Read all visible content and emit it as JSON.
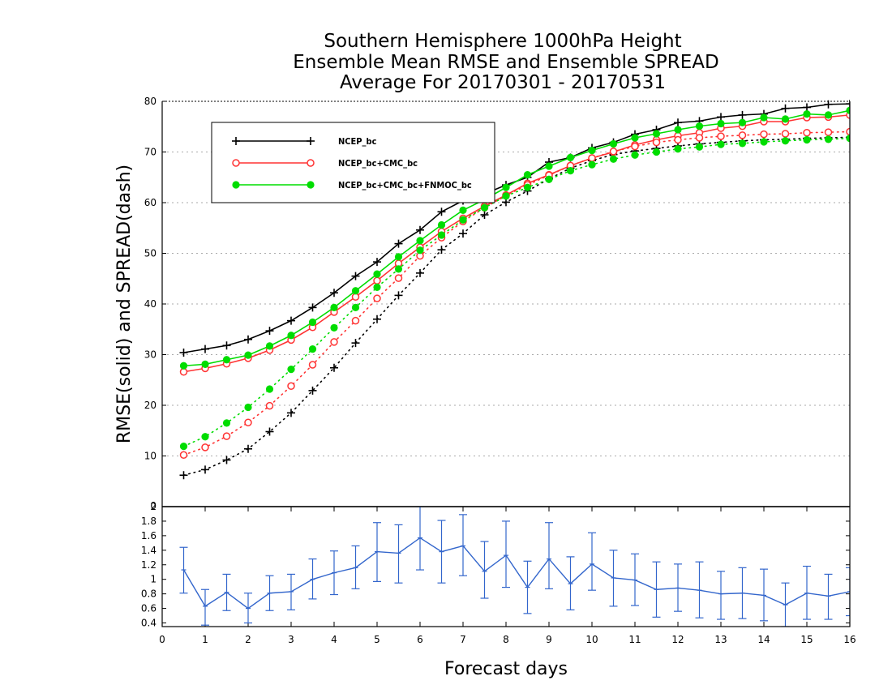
{
  "chart_data": [
    {
      "type": "line",
      "title_lines": [
        "Southern Hemisphere 1000hPa Height",
        "Ensemble Mean RMSE and Ensemble SPREAD",
        "Average For 20170301 - 20170531"
      ],
      "ylabel": "RMSE(solid)  and  SPREAD(dash)",
      "xlim": [
        0,
        16
      ],
      "ylim": [
        0,
        80
      ],
      "yticks": [
        "10",
        "20",
        "30",
        "40",
        "50",
        "60",
        "70",
        "80"
      ],
      "grid": "horizontal dotted",
      "legend_placement": "top-left",
      "x": [
        0.5,
        1,
        1.5,
        2,
        2.5,
        3,
        3.5,
        4,
        4.5,
        5,
        5.5,
        6,
        6.5,
        7,
        7.5,
        8,
        8.5,
        9,
        9.5,
        10,
        10.5,
        11,
        11.5,
        12,
        12.5,
        13,
        13.5,
        14,
        14.5,
        15,
        15.5,
        16
      ],
      "series": [
        {
          "name": "NCEP_bc",
          "color": "#000000",
          "marker": "plus",
          "rmse": [
            30.4,
            31.1,
            31.8,
            33.0,
            34.7,
            36.7,
            39.3,
            42.2,
            45.5,
            48.3,
            51.9,
            54.6,
            58.2,
            60.4,
            61.7,
            63.5,
            65.0,
            68.0,
            68.9,
            70.8,
            71.9,
            73.5,
            74.4,
            75.8,
            76.1,
            76.9,
            77.3,
            77.5,
            78.6,
            78.8,
            79.4,
            79.5
          ],
          "spread": [
            6.2,
            7.3,
            9.2,
            11.4,
            14.8,
            18.5,
            22.9,
            27.4,
            32.3,
            37.0,
            41.7,
            46.1,
            50.7,
            53.9,
            57.6,
            60.1,
            62.3,
            64.7,
            66.8,
            68.3,
            69.5,
            70.2,
            70.7,
            71.2,
            71.6,
            71.9,
            72.2,
            72.4,
            72.5,
            72.7,
            72.8,
            72.9
          ]
        },
        {
          "name": "NCEP_bc+CMC_bc",
          "color": "#ff3333",
          "marker": "open-circle",
          "rmse": [
            26.6,
            27.3,
            28.2,
            29.3,
            30.9,
            32.9,
            35.4,
            38.4,
            41.4,
            44.6,
            48.0,
            51.2,
            54.3,
            56.9,
            59.3,
            61.5,
            63.8,
            65.5,
            67.3,
            68.8,
            70.0,
            71.4,
            72.4,
            73.2,
            73.8,
            74.7,
            75.1,
            76.0,
            76.0,
            76.8,
            76.9,
            77.3
          ],
          "spread": [
            10.2,
            11.7,
            13.9,
            16.6,
            19.9,
            23.8,
            28.0,
            32.5,
            36.7,
            41.1,
            45.1,
            49.5,
            53.1,
            56.3,
            59.0,
            61.4,
            63.5,
            65.4,
            67.3,
            68.8,
            70.1,
            71.1,
            71.9,
            72.4,
            72.8,
            73.1,
            73.3,
            73.5,
            73.6,
            73.8,
            73.9,
            74.0
          ]
        },
        {
          "name": "NCEP_bc+CMC_bc+FNMOC_bc",
          "color": "#00dd00",
          "marker": "filled-circle",
          "rmse": [
            27.8,
            28.1,
            29.0,
            29.9,
            31.7,
            33.8,
            36.4,
            39.3,
            42.6,
            45.9,
            49.3,
            52.5,
            55.6,
            58.5,
            60.6,
            63.0,
            65.5,
            67.2,
            68.9,
            70.3,
            71.6,
            72.8,
            73.6,
            74.4,
            75.1,
            75.6,
            75.8,
            76.8,
            76.5,
            77.5,
            77.3,
            78.2
          ],
          "spread": [
            11.9,
            13.8,
            16.5,
            19.6,
            23.2,
            27.1,
            31.1,
            35.3,
            39.3,
            43.3,
            46.9,
            50.6,
            53.6,
            56.6,
            59.0,
            61.3,
            63.0,
            64.6,
            66.3,
            67.5,
            68.6,
            69.4,
            70.0,
            70.6,
            71.0,
            71.5,
            71.7,
            72.0,
            72.2,
            72.4,
            72.5,
            72.7
          ]
        }
      ]
    },
    {
      "type": "line",
      "xlabel": "Forecast days",
      "xlim": [
        0,
        16
      ],
      "ylim": [
        0.35,
        2.0
      ],
      "xticks": [
        "0",
        "1",
        "2",
        "3",
        "4",
        "5",
        "6",
        "7",
        "8",
        "9",
        "10",
        "11",
        "12",
        "13",
        "14",
        "15",
        "16"
      ],
      "yticks": [
        "0.4",
        "0.6",
        "0.8",
        "1",
        "1.2",
        "1.4",
        "1.6",
        "1.8",
        "2"
      ],
      "x": [
        0.5,
        1,
        1.5,
        2,
        2.5,
        3,
        3.5,
        4,
        4.5,
        5,
        5.5,
        6,
        6.5,
        7,
        7.5,
        8,
        8.5,
        9,
        9.5,
        10,
        10.5,
        11,
        11.5,
        12,
        12.5,
        13,
        13.5,
        14,
        14.5,
        15,
        15.5,
        16
      ],
      "series": [
        {
          "color": "#3366cc",
          "marker": "error-bar",
          "values": [
            1.13,
            0.63,
            0.82,
            0.6,
            0.81,
            0.83,
            1.0,
            1.09,
            1.16,
            1.38,
            1.36,
            1.57,
            1.38,
            1.46,
            1.11,
            1.33,
            0.89,
            1.28,
            0.94,
            1.21,
            1.02,
            0.99,
            0.86,
            0.88,
            0.85,
            0.8,
            0.81,
            0.78,
            0.65,
            0.81,
            0.77,
            0.83
          ],
          "lower": [
            0.81,
            0.37,
            0.57,
            0.4,
            0.57,
            0.58,
            0.73,
            0.79,
            0.87,
            0.97,
            0.95,
            1.13,
            0.95,
            1.05,
            0.74,
            0.89,
            0.53,
            0.87,
            0.58,
            0.85,
            0.63,
            0.64,
            0.48,
            0.56,
            0.47,
            0.45,
            0.46,
            0.43,
            0.35,
            0.45,
            0.45,
            0.5
          ],
          "upper": [
            1.44,
            0.86,
            1.07,
            0.81,
            1.05,
            1.07,
            1.28,
            1.39,
            1.46,
            1.78,
            1.75,
            2.0,
            1.81,
            1.89,
            1.52,
            1.8,
            1.25,
            1.78,
            1.31,
            1.64,
            1.4,
            1.35,
            1.24,
            1.21,
            1.24,
            1.11,
            1.16,
            1.14,
            0.95,
            1.18,
            1.07,
            1.16
          ]
        }
      ]
    }
  ]
}
